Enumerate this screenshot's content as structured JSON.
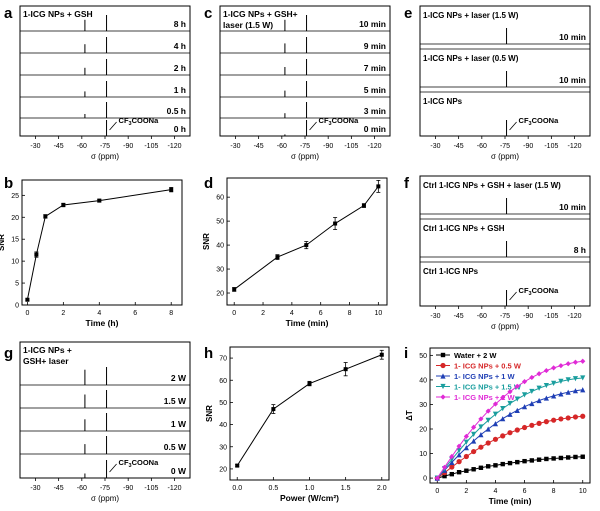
{
  "chart_data": [
    {
      "id": "a",
      "type": "nmr_stack",
      "panel_label": "a",
      "header": [
        "1-ICG NPs + GSH"
      ],
      "traces": [
        {
          "label": "8 h",
          "peaks": [
            {
              "x": -62,
              "h": 0.7
            },
            {
              "x": -76,
              "h": 1.0
            }
          ]
        },
        {
          "label": "4 h",
          "peaks": [
            {
              "x": -62,
              "h": 0.55
            },
            {
              "x": -76,
              "h": 1.0
            }
          ]
        },
        {
          "label": "2 h",
          "peaks": [
            {
              "x": -62,
              "h": 0.45
            },
            {
              "x": -76,
              "h": 1.0
            }
          ]
        },
        {
          "label": "1 h",
          "peaks": [
            {
              "x": -62,
              "h": 0.35
            },
            {
              "x": -76,
              "h": 1.0
            }
          ]
        },
        {
          "label": "0.5 h",
          "peaks": [
            {
              "x": -62,
              "h": 0.25
            },
            {
              "x": -76,
              "h": 1.0
            }
          ]
        },
        {
          "label": "0 h",
          "peaks": [
            {
              "x": -76,
              "h": 1.0
            }
          ]
        }
      ],
      "annotation": {
        "text": "CF",
        "sub": "3",
        "rest": "COONa"
      },
      "xticks": [
        "-30",
        "-45",
        "-60",
        "-75",
        "-90",
        "-105",
        "-120"
      ],
      "xlabel": "σ (ppm)"
    },
    {
      "id": "c",
      "type": "nmr_stack",
      "panel_label": "c",
      "header": [
        "1-ICG NPs + GSH+",
        "laser (1.5 W)"
      ],
      "traces": [
        {
          "label": "10 min",
          "peaks": [
            {
              "x": -62,
              "h": 0.7
            },
            {
              "x": -76,
              "h": 1.0
            }
          ]
        },
        {
          "label": "9 min",
          "peaks": [
            {
              "x": -62,
              "h": 0.6
            },
            {
              "x": -76,
              "h": 1.0
            }
          ]
        },
        {
          "label": "7 min",
          "peaks": [
            {
              "x": -62,
              "h": 0.5
            },
            {
              "x": -76,
              "h": 1.0
            }
          ]
        },
        {
          "label": "5 min",
          "peaks": [
            {
              "x": -62,
              "h": 0.4
            },
            {
              "x": -76,
              "h": 1.0
            }
          ]
        },
        {
          "label": "3 min",
          "peaks": [
            {
              "x": -62,
              "h": 0.3
            },
            {
              "x": -76,
              "h": 1.0
            }
          ]
        },
        {
          "label": "0 min",
          "peaks": [
            {
              "x": -62,
              "h": 0.1
            },
            {
              "x": -76,
              "h": 1.0
            }
          ]
        }
      ],
      "annotation": {
        "text": "CF",
        "sub": "3",
        "rest": "COONa"
      },
      "xticks": [
        "-30",
        "-45",
        "-60",
        "-75",
        "-90",
        "-105",
        "-120"
      ],
      "xlabel": "σ (ppm)"
    },
    {
      "id": "e",
      "type": "nmr_stack",
      "panel_label": "e",
      "traces": [
        {
          "label": "10 min",
          "top_label": "1-ICG NPs + laser (1.5 W)",
          "peaks": [
            {
              "x": -76,
              "h": 1.0
            }
          ]
        },
        {
          "label": "10 min",
          "top_label": "1-ICG NPs + laser (0.5 W)",
          "peaks": [
            {
              "x": -76,
              "h": 1.0
            }
          ]
        },
        {
          "label": "",
          "top_label": "1-ICG NPs",
          "peaks": [
            {
              "x": -76,
              "h": 1.0
            }
          ]
        }
      ],
      "annotation": {
        "text": "CF",
        "sub": "3",
        "rest": "COONa"
      },
      "xticks": [
        "-30",
        "-45",
        "-60",
        "-75",
        "-90",
        "-105",
        "-120"
      ],
      "xlabel": "σ (ppm)"
    },
    {
      "id": "b",
      "type": "line",
      "panel_label": "b",
      "x": [
        0,
        0.5,
        1,
        2,
        4,
        8
      ],
      "y": [
        1.2,
        11.5,
        20.2,
        22.8,
        23.8,
        26.3
      ],
      "err": [
        0.2,
        0.6,
        0.4,
        0.4,
        0.3,
        0.5
      ],
      "xlabel": "Time (h)",
      "ylabel": "SNR",
      "xlim": [
        -0.3,
        8.6
      ],
      "ylim": [
        0,
        28.5
      ],
      "xticks": [
        0,
        2,
        4,
        6,
        8
      ],
      "yticks": [
        0,
        5,
        10,
        15,
        20,
        25
      ]
    },
    {
      "id": "d",
      "type": "line",
      "panel_label": "d",
      "x": [
        0,
        3,
        5,
        7,
        9,
        10
      ],
      "y": [
        21.5,
        35,
        40,
        49,
        56.5,
        64.5
      ],
      "err": [
        0.8,
        1.0,
        1.5,
        2.5,
        0.8,
        2.5
      ],
      "xlabel": "Time (min)",
      "ylabel": "SNR",
      "xlim": [
        -0.5,
        10.6
      ],
      "ylim": [
        15,
        68
      ],
      "xticks": [
        0,
        2,
        4,
        6,
        8,
        10
      ],
      "yticks": [
        20,
        30,
        40,
        50,
        60
      ]
    },
    {
      "id": "f",
      "type": "nmr_stack",
      "panel_label": "f",
      "traces": [
        {
          "label": "10 min",
          "top_label": "Ctrl 1-ICG NPs + GSH + laser (1.5 W)",
          "peaks": [
            {
              "x": -76,
              "h": 1.0
            }
          ]
        },
        {
          "label": "8 h",
          "top_label": "Ctrl 1-ICG NPs + GSH",
          "peaks": [
            {
              "x": -76,
              "h": 1.0
            }
          ]
        },
        {
          "label": "",
          "top_label": "Ctrl 1-ICG NPs",
          "peaks": [
            {
              "x": -76,
              "h": 1.0
            }
          ]
        }
      ],
      "annotation": {
        "text": "CF",
        "sub": "3",
        "rest": "COONa"
      },
      "xticks": [
        "-30",
        "-45",
        "-60",
        "-75",
        "-90",
        "-105",
        "-120"
      ],
      "xlabel": "σ (ppm)"
    },
    {
      "id": "g",
      "type": "nmr_stack",
      "panel_label": "g",
      "header": [
        "1-ICG NPs +",
        "GSH+ laser"
      ],
      "traces": [
        {
          "label": "2 W",
          "peaks": [
            {
              "x": -62,
              "h": 0.85
            },
            {
              "x": -76,
              "h": 1.0
            }
          ]
        },
        {
          "label": "1.5 W",
          "peaks": [
            {
              "x": -62,
              "h": 0.75
            },
            {
              "x": -76,
              "h": 1.0
            }
          ]
        },
        {
          "label": "1 W",
          "peaks": [
            {
              "x": -62,
              "h": 0.65
            },
            {
              "x": -76,
              "h": 1.0
            }
          ]
        },
        {
          "label": "0.5 W",
          "peaks": [
            {
              "x": -62,
              "h": 0.55
            },
            {
              "x": -76,
              "h": 1.0
            }
          ]
        },
        {
          "label": "0 W",
          "peaks": [
            {
              "x": -62,
              "h": 0.25
            },
            {
              "x": -76,
              "h": 1.0
            }
          ]
        }
      ],
      "annotation": {
        "text": "CF",
        "sub": "3",
        "rest": "COONa"
      },
      "xticks": [
        "-30",
        "-45",
        "-60",
        "-75",
        "-90",
        "-105",
        "-120"
      ],
      "xlabel": "σ (ppm)"
    },
    {
      "id": "h",
      "type": "line",
      "panel_label": "h",
      "x": [
        0,
        0.5,
        1,
        1.5,
        2
      ],
      "y": [
        21.5,
        47,
        58.5,
        65,
        71.5
      ],
      "err": [
        0.5,
        2.0,
        1.0,
        3.0,
        2.0
      ],
      "xlabel": "Power (W/cm²)",
      "ylabel": "SNR",
      "xlim": [
        -0.1,
        2.1
      ],
      "ylim": [
        15,
        75
      ],
      "xticks": [
        "0.0",
        "0.5",
        "1.0",
        "1.5",
        "2.0"
      ],
      "yticks": [
        20,
        30,
        40,
        50,
        60,
        70
      ]
    },
    {
      "id": "i",
      "type": "line",
      "panel_label": "i",
      "xlabel": "Time (min)",
      "ylabel": "ΔT",
      "xlim": [
        -0.5,
        10.5
      ],
      "ylim": [
        -2,
        53
      ],
      "xticks": [
        0,
        2,
        4,
        6,
        8,
        10
      ],
      "yticks": [
        0,
        10,
        20,
        30,
        40,
        50
      ],
      "legend": "top-left",
      "x": [
        0,
        0.5,
        1,
        1.5,
        2,
        2.5,
        3,
        3.5,
        4,
        4.5,
        5,
        5.5,
        6,
        6.5,
        7,
        7.5,
        8,
        8.5,
        9,
        9.5,
        10
      ],
      "series": [
        {
          "name": "Water + 2 W",
          "color": "#000000",
          "marker": "square",
          "values": [
            0,
            0.8,
            1.6,
            2.4,
            3.0,
            3.6,
            4.2,
            4.8,
            5.2,
            5.7,
            6.1,
            6.5,
            6.9,
            7.2,
            7.5,
            7.8,
            8.0,
            8.2,
            8.4,
            8.6,
            8.7
          ]
        },
        {
          "name": "1- ICG NPs + 0.5 W",
          "color": "#d62728",
          "marker": "circle",
          "values": [
            0,
            2.2,
            4.5,
            6.7,
            8.8,
            10.8,
            12.6,
            14.3,
            15.8,
            17.2,
            18.5,
            19.6,
            20.6,
            21.5,
            22.3,
            23.0,
            23.6,
            24.1,
            24.5,
            24.9,
            25.2
          ]
        },
        {
          "name": "1- ICG NPs + 1 W",
          "color": "#1f3fb5",
          "marker": "triangle-up",
          "values": [
            0,
            3.2,
            6.4,
            9.5,
            12.4,
            15.1,
            17.7,
            20.0,
            22.2,
            24.2,
            26.0,
            27.6,
            29.1,
            30.4,
            31.6,
            32.6,
            33.5,
            34.3,
            35.0,
            35.6,
            36.0
          ]
        },
        {
          "name": "1- ICG NPs + 1.5 W",
          "color": "#1a9e9e",
          "marker": "triangle-down",
          "values": [
            0,
            3.8,
            7.6,
            11.2,
            14.6,
            17.8,
            20.8,
            23.5,
            26.0,
            28.3,
            30.4,
            32.2,
            33.9,
            35.3,
            36.6,
            37.7,
            38.6,
            39.4,
            40.0,
            40.5,
            40.8
          ]
        },
        {
          "name": "1- ICG NPs + 2 W",
          "color": "#e02ad6",
          "marker": "diamond",
          "values": [
            0,
            4.4,
            8.8,
            13.0,
            17.0,
            20.7,
            24.1,
            27.3,
            30.2,
            32.8,
            35.2,
            37.4,
            39.3,
            41.0,
            42.5,
            43.8,
            44.9,
            45.8,
            46.6,
            47.2,
            47.6
          ]
        }
      ]
    }
  ]
}
